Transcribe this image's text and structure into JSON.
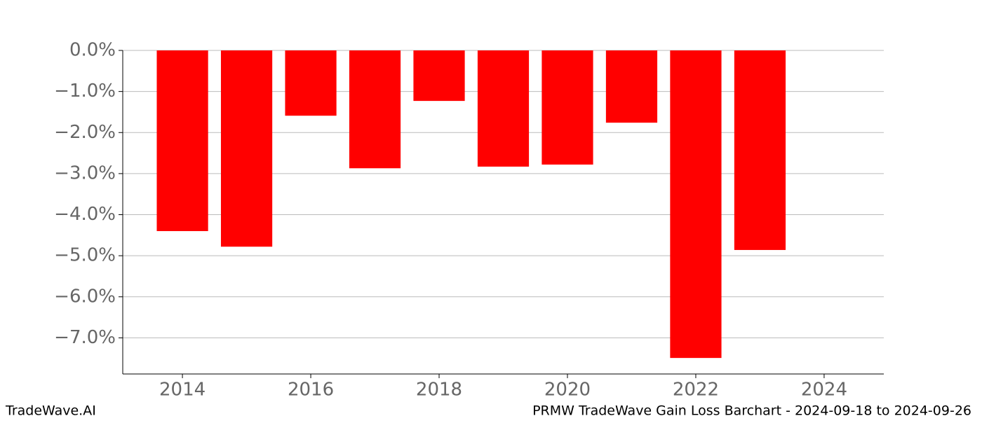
{
  "chart_data": {
    "type": "bar",
    "title": "PRMW TradeWave Gain Loss Barchart - 2024-09-18 to 2024-09-26",
    "brand": "TradeWave.AI",
    "x": [
      2014,
      2015,
      2016,
      2017,
      2018,
      2019,
      2020,
      2021,
      2022,
      2023
    ],
    "values": [
      -4.4,
      -4.78,
      -1.59,
      -2.87,
      -1.23,
      -2.83,
      -2.78,
      -1.76,
      -7.49,
      -4.86
    ],
    "color": "#ff0000",
    "xlim": [
      2013.07,
      2024.93
    ],
    "xticks": [
      2014,
      2016,
      2018,
      2020,
      2022,
      2024
    ],
    "ylim": [
      -7.88,
      0
    ],
    "yticks": [
      {
        "value": 0,
        "label": "0.0%"
      },
      {
        "value": -1,
        "label": "−1.0%"
      },
      {
        "value": -2,
        "label": "−2.0%"
      },
      {
        "value": -3,
        "label": "−3.0%"
      },
      {
        "value": -4,
        "label": "−4.0%"
      },
      {
        "value": -5,
        "label": "−5.0%"
      },
      {
        "value": -6,
        "label": "−6.0%"
      },
      {
        "value": -7,
        "label": "−7.0%"
      }
    ],
    "grid": true
  }
}
